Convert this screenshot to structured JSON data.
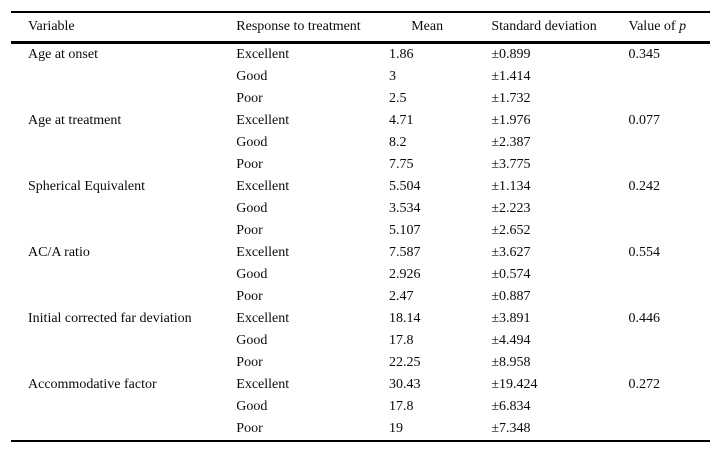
{
  "table": {
    "columns": [
      {
        "key": "variable",
        "label": "Variable"
      },
      {
        "key": "response",
        "label": "Response to treatment"
      },
      {
        "key": "mean",
        "label": "Mean"
      },
      {
        "key": "sd",
        "label": "Standard deviation"
      },
      {
        "key": "p",
        "label": "Value of",
        "italic": "p"
      }
    ],
    "groups": [
      {
        "variable": "Age at onset",
        "p": "0.345",
        "rows": [
          {
            "response": "Excellent",
            "mean": "1.86",
            "sd": "±0.899"
          },
          {
            "response": "Good",
            "mean": "3",
            "sd": "±1.414"
          },
          {
            "response": "Poor",
            "mean": "2.5",
            "sd": "±1.732"
          }
        ]
      },
      {
        "variable": "Age at treatment",
        "p": "0.077",
        "rows": [
          {
            "response": "Excellent",
            "mean": "4.71",
            "sd": "±1.976"
          },
          {
            "response": "Good",
            "mean": "8.2",
            "sd": "±2.387"
          },
          {
            "response": "Poor",
            "mean": "7.75",
            "sd": "±3.775"
          }
        ]
      },
      {
        "variable": "Spherical Equivalent",
        "p": "0.242",
        "rows": [
          {
            "response": "Excellent",
            "mean": "5.504",
            "sd": "±1.134"
          },
          {
            "response": "Good",
            "mean": "3.534",
            "sd": "±2.223"
          },
          {
            "response": "Poor",
            "mean": "5.107",
            "sd": "±2.652"
          }
        ]
      },
      {
        "variable": "AC/A ratio",
        "p": "0.554",
        "rows": [
          {
            "response": "Excellent",
            "mean": "7.587",
            "sd": "±3.627"
          },
          {
            "response": "Good",
            "mean": "2.926",
            "sd": "±0.574"
          },
          {
            "response": "Poor",
            "mean": "2.47",
            "sd": "±0.887"
          }
        ]
      },
      {
        "variable": "Initial corrected far deviation",
        "p": "0.446",
        "rows": [
          {
            "response": "Excellent",
            "mean": "18.14",
            "sd": "±3.891"
          },
          {
            "response": "Good",
            "mean": "17.8",
            "sd": "±4.494"
          },
          {
            "response": "Poor",
            "mean": "22.25",
            "sd": "±8.958"
          }
        ]
      },
      {
        "variable": "Accommodative factor",
        "p": "0.272",
        "rows": [
          {
            "response": "Excellent",
            "mean": "30.43",
            "sd": "±19.424"
          },
          {
            "response": "Good",
            "mean": "17.8",
            "sd": "±6.834"
          },
          {
            "response": "Poor",
            "mean": "19",
            "sd": "±7.348"
          }
        ]
      }
    ]
  }
}
